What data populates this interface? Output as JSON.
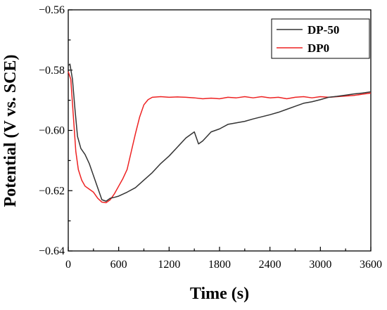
{
  "chart_data": {
    "type": "line",
    "title": "",
    "xlabel": "Time (s)",
    "ylabel": "Potential (V vs. SCE)",
    "xlim": [
      0,
      3600
    ],
    "ylim": [
      -0.64,
      -0.56
    ],
    "x_ticks": [
      0,
      600,
      1200,
      1800,
      2400,
      3000,
      3600
    ],
    "x_tick_labels": [
      "0",
      "600",
      "1200",
      "1800",
      "2400",
      "3000",
      "3600"
    ],
    "y_ticks": [
      -0.56,
      -0.58,
      -0.6,
      -0.62,
      -0.64
    ],
    "y_tick_labels": [
      "−0.56",
      "−0.58",
      "−0.60",
      "−0.62",
      "−0.64"
    ],
    "grid": false,
    "legend_position": "top-right",
    "series": [
      {
        "name": "DP-50",
        "color": "#333333",
        "points": [
          [
            0,
            -0.5785
          ],
          [
            20,
            -0.578
          ],
          [
            50,
            -0.583
          ],
          [
            80,
            -0.593
          ],
          [
            110,
            -0.602
          ],
          [
            150,
            -0.606
          ],
          [
            200,
            -0.608
          ],
          [
            250,
            -0.611
          ],
          [
            300,
            -0.615
          ],
          [
            350,
            -0.619
          ],
          [
            400,
            -0.623
          ],
          [
            450,
            -0.6235
          ],
          [
            500,
            -0.6225
          ],
          [
            550,
            -0.6222
          ],
          [
            600,
            -0.6218
          ],
          [
            700,
            -0.6205
          ],
          [
            800,
            -0.619
          ],
          [
            900,
            -0.6165
          ],
          [
            1000,
            -0.614
          ],
          [
            1100,
            -0.611
          ],
          [
            1200,
            -0.6085
          ],
          [
            1300,
            -0.6055
          ],
          [
            1400,
            -0.6025
          ],
          [
            1500,
            -0.6005
          ],
          [
            1550,
            -0.6045
          ],
          [
            1600,
            -0.6035
          ],
          [
            1700,
            -0.6005
          ],
          [
            1800,
            -0.5995
          ],
          [
            1900,
            -0.598
          ],
          [
            2000,
            -0.5975
          ],
          [
            2100,
            -0.597
          ],
          [
            2200,
            -0.5962
          ],
          [
            2300,
            -0.5955
          ],
          [
            2400,
            -0.5948
          ],
          [
            2500,
            -0.594
          ],
          [
            2600,
            -0.593
          ],
          [
            2700,
            -0.592
          ],
          [
            2800,
            -0.591
          ],
          [
            2900,
            -0.5905
          ],
          [
            3000,
            -0.5898
          ],
          [
            3100,
            -0.589
          ],
          [
            3200,
            -0.5887
          ],
          [
            3300,
            -0.5883
          ],
          [
            3400,
            -0.5879
          ],
          [
            3500,
            -0.5876
          ],
          [
            3600,
            -0.5872
          ]
        ]
      },
      {
        "name": "DP0",
        "color": "#ee2222",
        "points": [
          [
            0,
            -0.5805
          ],
          [
            30,
            -0.583
          ],
          [
            60,
            -0.595
          ],
          [
            90,
            -0.607
          ],
          [
            120,
            -0.613
          ],
          [
            160,
            -0.6165
          ],
          [
            200,
            -0.6185
          ],
          [
            250,
            -0.6195
          ],
          [
            300,
            -0.6205
          ],
          [
            350,
            -0.6225
          ],
          [
            400,
            -0.6238
          ],
          [
            450,
            -0.624
          ],
          [
            500,
            -0.623
          ],
          [
            550,
            -0.621
          ],
          [
            600,
            -0.6185
          ],
          [
            650,
            -0.616
          ],
          [
            700,
            -0.613
          ],
          [
            750,
            -0.607
          ],
          [
            800,
            -0.601
          ],
          [
            850,
            -0.5955
          ],
          [
            900,
            -0.5915
          ],
          [
            950,
            -0.5898
          ],
          [
            1000,
            -0.589
          ],
          [
            1100,
            -0.5888
          ],
          [
            1200,
            -0.589
          ],
          [
            1300,
            -0.5889
          ],
          [
            1400,
            -0.589
          ],
          [
            1500,
            -0.5892
          ],
          [
            1600,
            -0.5895
          ],
          [
            1700,
            -0.5893
          ],
          [
            1800,
            -0.5895
          ],
          [
            1900,
            -0.589
          ],
          [
            2000,
            -0.5892
          ],
          [
            2100,
            -0.5888
          ],
          [
            2200,
            -0.5892
          ],
          [
            2300,
            -0.5888
          ],
          [
            2400,
            -0.5892
          ],
          [
            2500,
            -0.589
          ],
          [
            2600,
            -0.5895
          ],
          [
            2700,
            -0.589
          ],
          [
            2800,
            -0.5888
          ],
          [
            2900,
            -0.5892
          ],
          [
            3000,
            -0.5888
          ],
          [
            3100,
            -0.589
          ],
          [
            3200,
            -0.5888
          ],
          [
            3300,
            -0.5886
          ],
          [
            3400,
            -0.5884
          ],
          [
            3500,
            -0.588
          ],
          [
            3600,
            -0.5876
          ]
        ]
      }
    ]
  }
}
